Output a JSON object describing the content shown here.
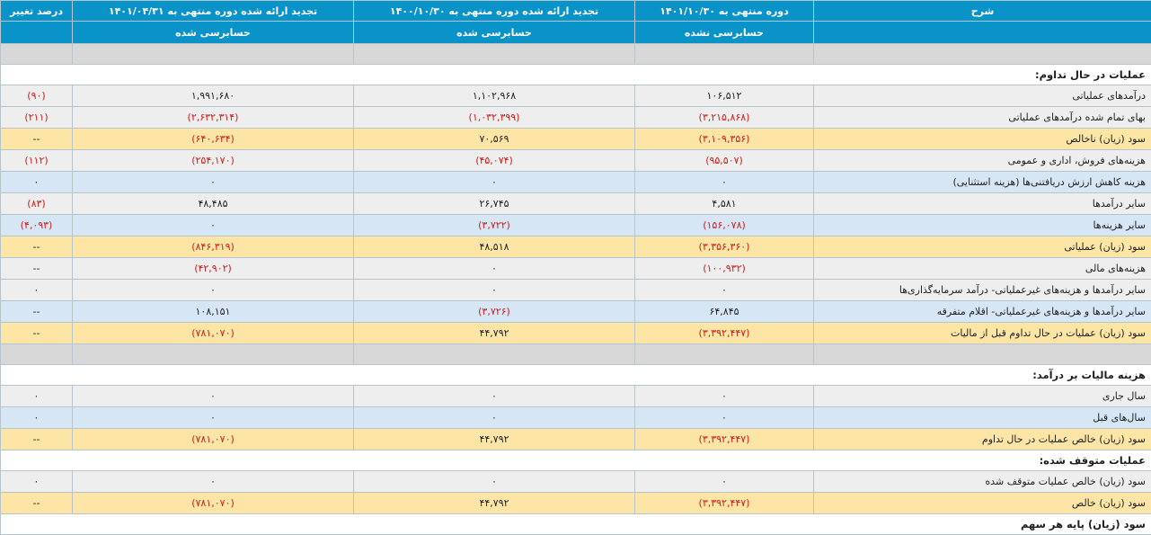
{
  "header": {
    "col_pct": "درصد تغییر",
    "col_a": "تجدید ارائه شده دوره منتهی به ۱۴۰۱/۰۴/۳۱",
    "col_b": "تجدید ارائه شده دوره منتهی به ۱۴۰۰/۱۰/۳۰",
    "col_c": "دوره منتهی به ۱۴۰۱/۱۰/۳۰",
    "col_desc": "شرح",
    "sub_a": "حسابرسی شده",
    "sub_b": "حسابرسی شده",
    "sub_c": "حسابرسی نشده"
  },
  "sections": {
    "s1": "عملیات در حال تداوم:",
    "s2": "هزینه مالیات بر درآمد:",
    "s3": "عملیات متوقف شده:",
    "s4": "سود (زیان) پایه هر سهم"
  },
  "rows": [
    {
      "label": "درآمدهای عملیاتی",
      "c": "۱۰۶,۵۱۲",
      "b": "۱,۱۰۲,۹۶۸",
      "a": "۱,۹۹۱,۶۸۰",
      "pct": "(۹۰)"
    },
    {
      "label": "بهای تمام شده درآمدهای عملیاتی",
      "c": "(۳,۲۱۵,۸۶۸)",
      "b": "(۱,۰۳۲,۳۹۹)",
      "a": "(۲,۶۳۲,۳۱۴)",
      "pct": "(۲۱۱)"
    },
    {
      "label": "سود (زیان) ناخالص",
      "c": "(۳,۱۰۹,۳۵۶)",
      "b": "۷۰,۵۶۹",
      "a": "(۶۴۰,۶۳۴)",
      "pct": "--"
    },
    {
      "label": "هزینه‌های فروش، اداری و عمومی",
      "c": "(۹۵,۵۰۷)",
      "b": "(۴۵,۰۷۴)",
      "a": "(۲۵۴,۱۷۰)",
      "pct": "(۱۱۲)"
    },
    {
      "label": "هزینه کاهش ارزش دریافتنی‌ها (هزینه استثنایی)",
      "c": "۰",
      "b": "۰",
      "a": "۰",
      "pct": "۰"
    },
    {
      "label": "سایر درآمدها",
      "c": "۴,۵۸۱",
      "b": "۲۶,۷۴۵",
      "a": "۴۸,۴۸۵",
      "pct": "(۸۳)"
    },
    {
      "label": "سایر هزینه‌ها",
      "c": "(۱۵۶,۰۷۸)",
      "b": "(۳,۷۲۲)",
      "a": "۰",
      "pct": "(۴,۰۹۳)"
    },
    {
      "label": "سود (زیان) عملیاتی",
      "c": "(۳,۳۵۶,۳۶۰)",
      "b": "۴۸,۵۱۸",
      "a": "(۸۴۶,۳۱۹)",
      "pct": "--"
    },
    {
      "label": "هزینه‌های مالی",
      "c": "(۱۰۰,۹۳۲)",
      "b": "۰",
      "a": "(۴۲,۹۰۲)",
      "pct": "--"
    },
    {
      "label": "سایر درآمدها و هزینه‌های غیرعملیاتی- درآمد سرمایه‌گذاری‌ها",
      "c": "۰",
      "b": "۰",
      "a": "۰",
      "pct": "۰"
    },
    {
      "label": "سایر درآمدها و هزینه‌های غیرعملیاتی- اقلام متفرقه",
      "c": "۶۴,۸۴۵",
      "b": "(۳,۷۲۶)",
      "a": "۱۰۸,۱۵۱",
      "pct": "--"
    },
    {
      "label": "سود (زیان) عملیات در حال تداوم قبل از مالیات",
      "c": "(۳,۳۹۲,۴۴۷)",
      "b": "۴۴,۷۹۲",
      "a": "(۷۸۱,۰۷۰)",
      "pct": "--"
    },
    {
      "label": "سال جاری",
      "c": "۰",
      "b": "۰",
      "a": "۰",
      "pct": "۰"
    },
    {
      "label": "سال‌های قبل",
      "c": "۰",
      "b": "۰",
      "a": "۰",
      "pct": "۰"
    },
    {
      "label": "سود (زیان) خالص عملیات در حال تداوم",
      "c": "(۳,۳۹۲,۴۴۷)",
      "b": "۴۴,۷۹۲",
      "a": "(۷۸۱,۰۷۰)",
      "pct": "--"
    },
    {
      "label": "سود (زیان) خالص عملیات متوقف شده",
      "c": "۰",
      "b": "۰",
      "a": "۰",
      "pct": "۰"
    },
    {
      "label": "سود (زیان) خالص",
      "c": "(۳,۳۹۲,۴۴۷)",
      "b": "۴۴,۷۹۲",
      "a": "(۷۸۱,۰۷۰)",
      "pct": "--"
    }
  ]
}
